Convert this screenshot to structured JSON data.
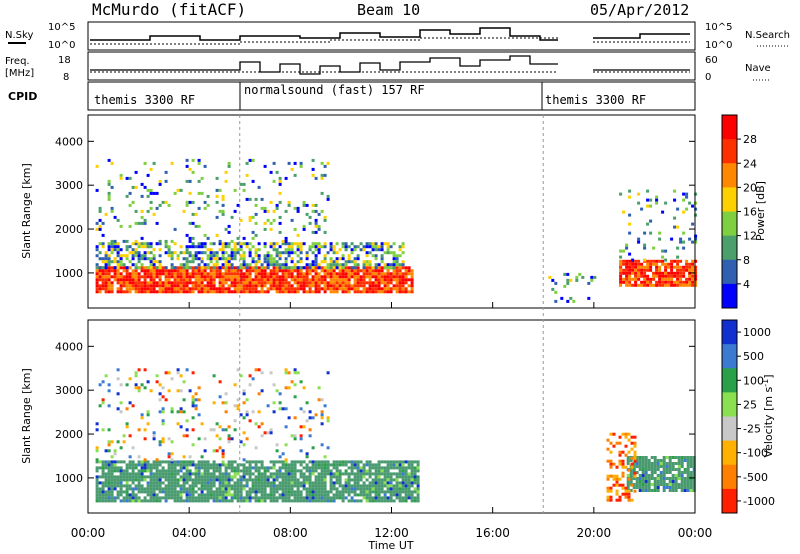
{
  "header": {
    "station": "McMurdo (fitACF)",
    "beam": "Beam 10",
    "date": "05/Apr/2012"
  },
  "noise_panel": {
    "left_label": "N.Sky",
    "right_label": "N.Search",
    "left_ticks": [
      "10^5",
      "10^0"
    ],
    "right_ticks": [
      "10^5",
      "10^0"
    ]
  },
  "freq_panel": {
    "left_label_1": "Freq.",
    "left_label_2": "[MHz]",
    "right_label": "Nave",
    "left_ticks": [
      "18",
      "8"
    ],
    "right_ticks": [
      "60",
      "0"
    ]
  },
  "cpid_panel": {
    "label": "CPID",
    "segments": [
      {
        "label": "themis 3300 RF",
        "start": "00:00",
        "end": "06:00"
      },
      {
        "label": "normalsound (fast) 157 RF",
        "start": "06:00",
        "end": "18:00"
      },
      {
        "label": "themis 3300 RF",
        "start": "18:00",
        "end": "24:00"
      }
    ]
  },
  "colors": {
    "scale": [
      "#0000ff",
      "#2ba02b",
      "#7fcf3f",
      "#c9c9c9",
      "#ffb000",
      "#ff8000",
      "#ff0000"
    ],
    "power": [
      "#0000ff",
      "#3060b0",
      "#4a9f6a",
      "#7fd040",
      "#ffd000",
      "#ff8800",
      "#ff3000",
      "#ff0000"
    ],
    "velocity": [
      "#1030d0",
      "#3a7ad0",
      "#2aa048",
      "#8ae050",
      "#c8c8c8",
      "#ffb000",
      "#ff8000",
      "#ff2000"
    ],
    "velocity_main": "#4a9a70",
    "frame": "#000000"
  },
  "chart_data": [
    {
      "type": "heatmap",
      "name": "power",
      "ylabel": "Slant Range [km]",
      "xlabel": "",
      "yticks": [
        "1000",
        "2000",
        "3000",
        "4000"
      ],
      "xticks": [
        "00:00",
        "04:00",
        "08:00",
        "12:00",
        "16:00",
        "20:00",
        "00:00"
      ],
      "ylim": [
        200,
        4600
      ],
      "xlim": [
        0,
        24
      ],
      "colorbar": {
        "label": "Power [dB]",
        "ticks": [
          "28",
          "24",
          "20",
          "16",
          "12",
          "8",
          "4"
        ]
      },
      "bands": [
        {
          "x0": 0.3,
          "x1": 12.8,
          "y0": 550,
          "y1": 1150,
          "level": "high"
        },
        {
          "x0": 0.3,
          "x1": 12.5,
          "y0": 1150,
          "y1": 1700,
          "level": "mid"
        },
        {
          "x0": 0.3,
          "x1": 9.5,
          "y0": 1700,
          "y1": 3600,
          "level": "sparse"
        },
        {
          "x0": 18.2,
          "x1": 20.0,
          "y0": 300,
          "y1": 1000,
          "level": "sparse"
        },
        {
          "x0": 21.0,
          "x1": 24.0,
          "y0": 700,
          "y1": 1300,
          "level": "high"
        },
        {
          "x0": 21.0,
          "x1": 24.0,
          "y0": 1300,
          "y1": 2900,
          "level": "sparse"
        }
      ]
    },
    {
      "type": "heatmap",
      "name": "velocity",
      "ylabel": "Slant Range [km]",
      "xlabel": "Time UT",
      "yticks": [
        "1000",
        "2000",
        "3000",
        "4000"
      ],
      "xticks": [
        "00:00",
        "04:00",
        "08:00",
        "12:00",
        "16:00",
        "20:00",
        "00:00"
      ],
      "ylim": [
        200,
        4600
      ],
      "xlim": [
        0,
        24
      ],
      "colorbar": {
        "label": "Velocity [m s^-1]",
        "ticks": [
          "1000",
          "500",
          "100",
          "25",
          "-25",
          "-100",
          "-500",
          "-1000"
        ]
      },
      "bands": [
        {
          "x0": 0.3,
          "x1": 13.0,
          "y0": 500,
          "y1": 1400,
          "level": "main"
        },
        {
          "x0": 0.3,
          "x1": 9.5,
          "y0": 1400,
          "y1": 3500,
          "level": "sparse"
        },
        {
          "x0": 21.3,
          "x1": 24.0,
          "y0": 700,
          "y1": 1500,
          "level": "main"
        },
        {
          "x0": 20.5,
          "x1": 21.6,
          "y0": 500,
          "y1": 2100,
          "level": "neg"
        }
      ]
    }
  ]
}
